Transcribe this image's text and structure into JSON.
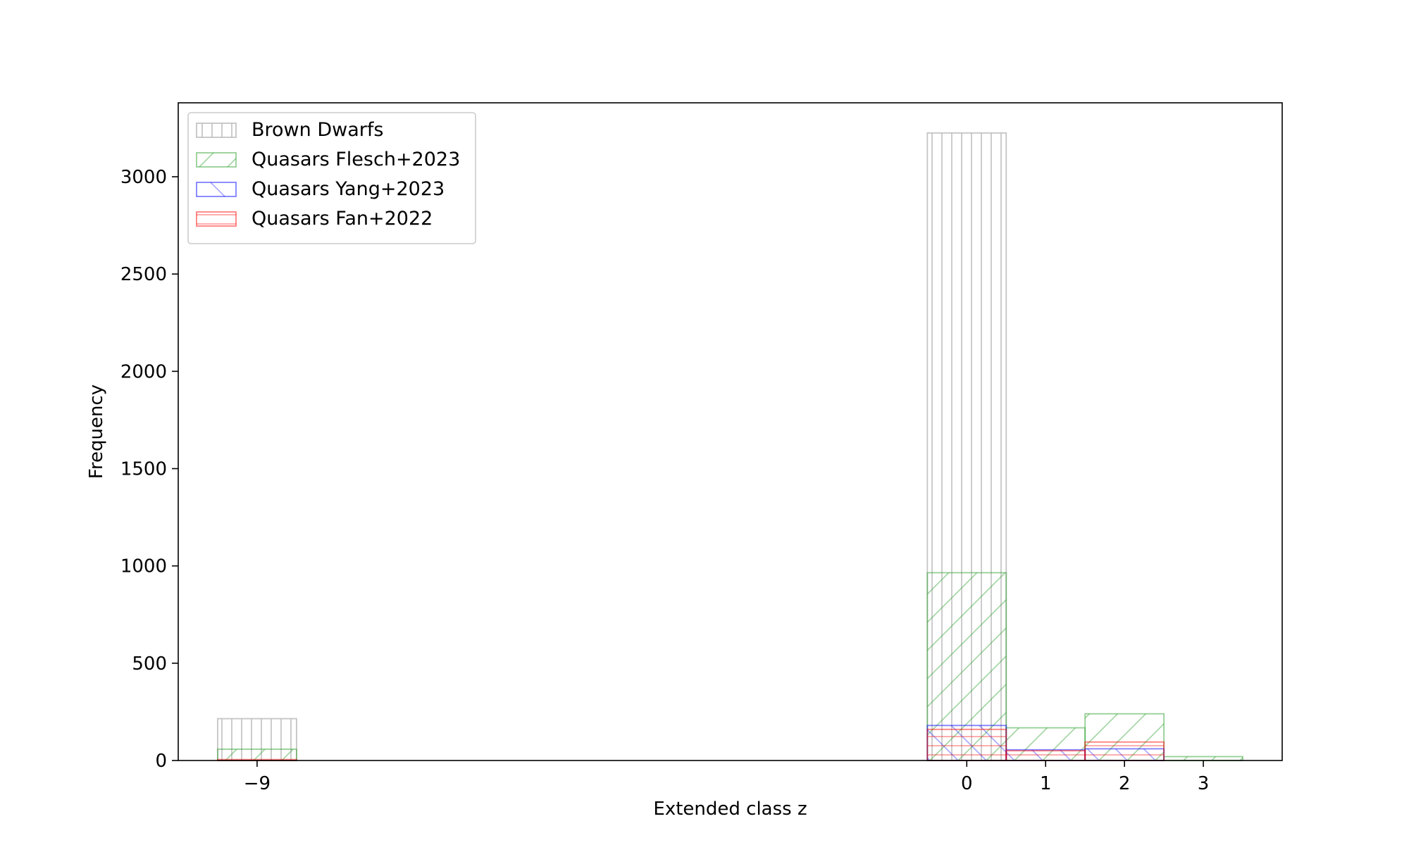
{
  "chart_data": {
    "type": "bar",
    "title": "",
    "xlabel": "Extended class z",
    "ylabel": "Frequency",
    "xlim": [
      -10,
      4
    ],
    "ylim": [
      0,
      3380
    ],
    "xticks": [
      -9,
      0,
      1,
      2,
      3
    ],
    "xtick_labels": [
      "−9",
      "0",
      "1",
      "2",
      "3"
    ],
    "yticks": [
      0,
      500,
      1000,
      1500,
      2000,
      2500,
      3000
    ],
    "ytick_labels": [
      "0",
      "500",
      "1000",
      "1500",
      "2000",
      "2500",
      "3000"
    ],
    "grid": false,
    "legend_position": "upper-left",
    "bins": [
      -9,
      0,
      1,
      2,
      3
    ],
    "series": [
      {
        "name": "Brown Dwarfs",
        "color": "#bfbfbf",
        "hatch": "vertical",
        "values": [
          215,
          3225,
          0,
          0,
          0
        ]
      },
      {
        "name": "Quasars Flesch+2023",
        "color": "#2ca02c",
        "hatch": "diagonal-up",
        "values": [
          58,
          965,
          168,
          240,
          20
        ]
      },
      {
        "name": "Quasars Yang+2023",
        "color": "#0000ff",
        "hatch": "diagonal-down",
        "values": [
          0,
          180,
          55,
          60,
          0
        ]
      },
      {
        "name": "Quasars Fan+2022",
        "color": "#ff0000",
        "hatch": "horizontal",
        "values": [
          5,
          160,
          50,
          95,
          0
        ]
      }
    ]
  }
}
